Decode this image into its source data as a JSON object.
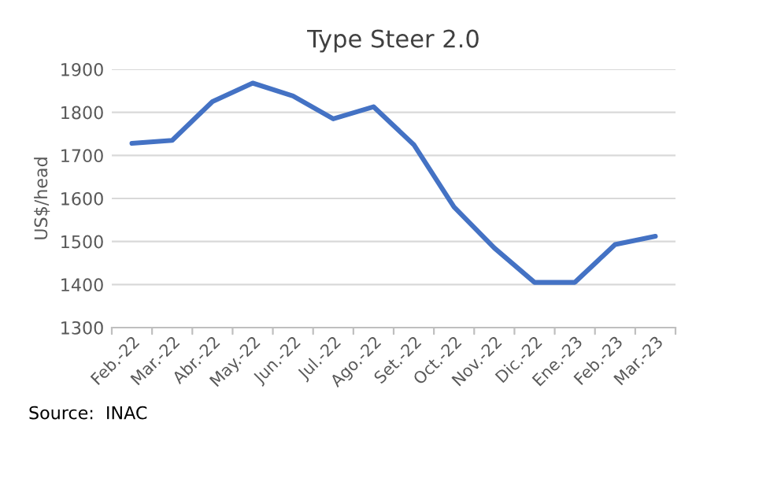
{
  "chart_data": {
    "type": "line",
    "title": "Type Steer 2.0",
    "ylabel": "US$/head",
    "categories": [
      "Feb.-22",
      "Mar.-22",
      "Abr.-22",
      "May.-22",
      "Jun.-22",
      "Jul.-22",
      "Ago.-22",
      "Set.-22",
      "Oct.-22",
      "Nov.-22",
      "Dic.-22",
      "Ene.-23",
      "Feb.-23",
      "Mar.-23"
    ],
    "series": [
      {
        "color": "#4472c4",
        "values": [
          1728,
          1735,
          1825,
          1868,
          1838,
          1785,
          1813,
          1725,
          1580,
          1485,
          1405,
          1405,
          1493,
          1512
        ]
      }
    ],
    "ylim": [
      1300,
      1900
    ],
    "yticks": [
      1300,
      1400,
      1500,
      1600,
      1700,
      1800,
      1900
    ],
    "grid": "y",
    "legend": false,
    "annotations": [
      "Source:  INAC"
    ]
  }
}
